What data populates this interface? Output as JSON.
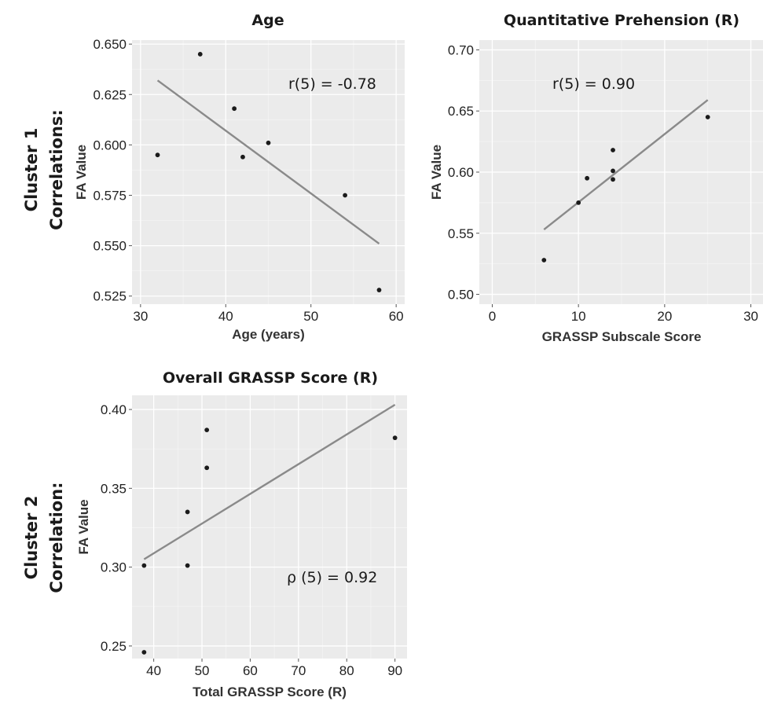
{
  "row_labels": [
    {
      "line1": "Cluster 1",
      "line2": "Correlations:"
    },
    {
      "line1": "Cluster 2",
      "line2": "Correlation:"
    }
  ],
  "chart_data": [
    {
      "type": "scatter",
      "title": "Age",
      "xlabel": "Age (years)",
      "ylabel": "FA Value",
      "xlim": [
        29,
        61
      ],
      "ylim": [
        0.521,
        0.652
      ],
      "xticks": [
        30,
        40,
        50,
        60
      ],
      "yticks": [
        0.525,
        0.55,
        0.575,
        0.6,
        0.625,
        0.65
      ],
      "xtick_labels": [
        "30",
        "40",
        "50",
        "60"
      ],
      "ytick_labels": [
        "0.525",
        "0.550",
        "0.575",
        "0.600",
        "0.625",
        "0.650"
      ],
      "points": [
        {
          "x": 32,
          "y": 0.595
        },
        {
          "x": 37,
          "y": 0.645
        },
        {
          "x": 41,
          "y": 0.618
        },
        {
          "x": 42,
          "y": 0.594
        },
        {
          "x": 45,
          "y": 0.601
        },
        {
          "x": 54,
          "y": 0.575
        },
        {
          "x": 58,
          "y": 0.528
        }
      ],
      "fit_line": {
        "x": [
          32,
          58
        ],
        "y": [
          0.632,
          0.551
        ]
      },
      "annotation": "r(5) = -0.78",
      "grid": true
    },
    {
      "type": "scatter",
      "title": "Quantitative Prehension (R)",
      "xlabel": "GRASSP Subscale Score",
      "ylabel": "FA Value",
      "xlim": [
        -1.5,
        31.5
      ],
      "ylim": [
        0.492,
        0.708
      ],
      "xticks": [
        0,
        10,
        20,
        30
      ],
      "yticks": [
        0.5,
        0.55,
        0.6,
        0.65,
        0.7
      ],
      "xtick_labels": [
        "0",
        "10",
        "20",
        "30"
      ],
      "ytick_labels": [
        "0.50",
        "0.55",
        "0.60",
        "0.65",
        "0.70"
      ],
      "points": [
        {
          "x": 6,
          "y": 0.528
        },
        {
          "x": 10,
          "y": 0.575
        },
        {
          "x": 11,
          "y": 0.595
        },
        {
          "x": 14,
          "y": 0.618
        },
        {
          "x": 14,
          "y": 0.601
        },
        {
          "x": 14,
          "y": 0.594
        },
        {
          "x": 25,
          "y": 0.645
        }
      ],
      "fit_line": {
        "x": [
          6,
          25
        ],
        "y": [
          0.553,
          0.659
        ]
      },
      "annotation": "r(5) = 0.90",
      "grid": true
    },
    {
      "type": "scatter",
      "title": "Overall GRASSP Score (R)",
      "xlabel": "Total GRASSP Score (R)",
      "ylabel": "FA Value",
      "xlim": [
        35.5,
        92.5
      ],
      "ylim": [
        0.242,
        0.409
      ],
      "xticks": [
        40,
        50,
        60,
        70,
        80,
        90
      ],
      "yticks": [
        0.25,
        0.3,
        0.35,
        0.4
      ],
      "xtick_labels": [
        "40",
        "50",
        "60",
        "70",
        "80",
        "90"
      ],
      "ytick_labels": [
        "0.25",
        "0.30",
        "0.35",
        "0.40"
      ],
      "points": [
        {
          "x": 38,
          "y": 0.301
        },
        {
          "x": 38,
          "y": 0.246
        },
        {
          "x": 47,
          "y": 0.335
        },
        {
          "x": 47,
          "y": 0.301
        },
        {
          "x": 51,
          "y": 0.387
        },
        {
          "x": 51,
          "y": 0.363
        },
        {
          "x": 90,
          "y": 0.382
        }
      ],
      "fit_line": {
        "x": [
          38,
          90
        ],
        "y": [
          0.305,
          0.403
        ]
      },
      "annotation": "ρ (5) = 0.92",
      "grid": true
    }
  ]
}
